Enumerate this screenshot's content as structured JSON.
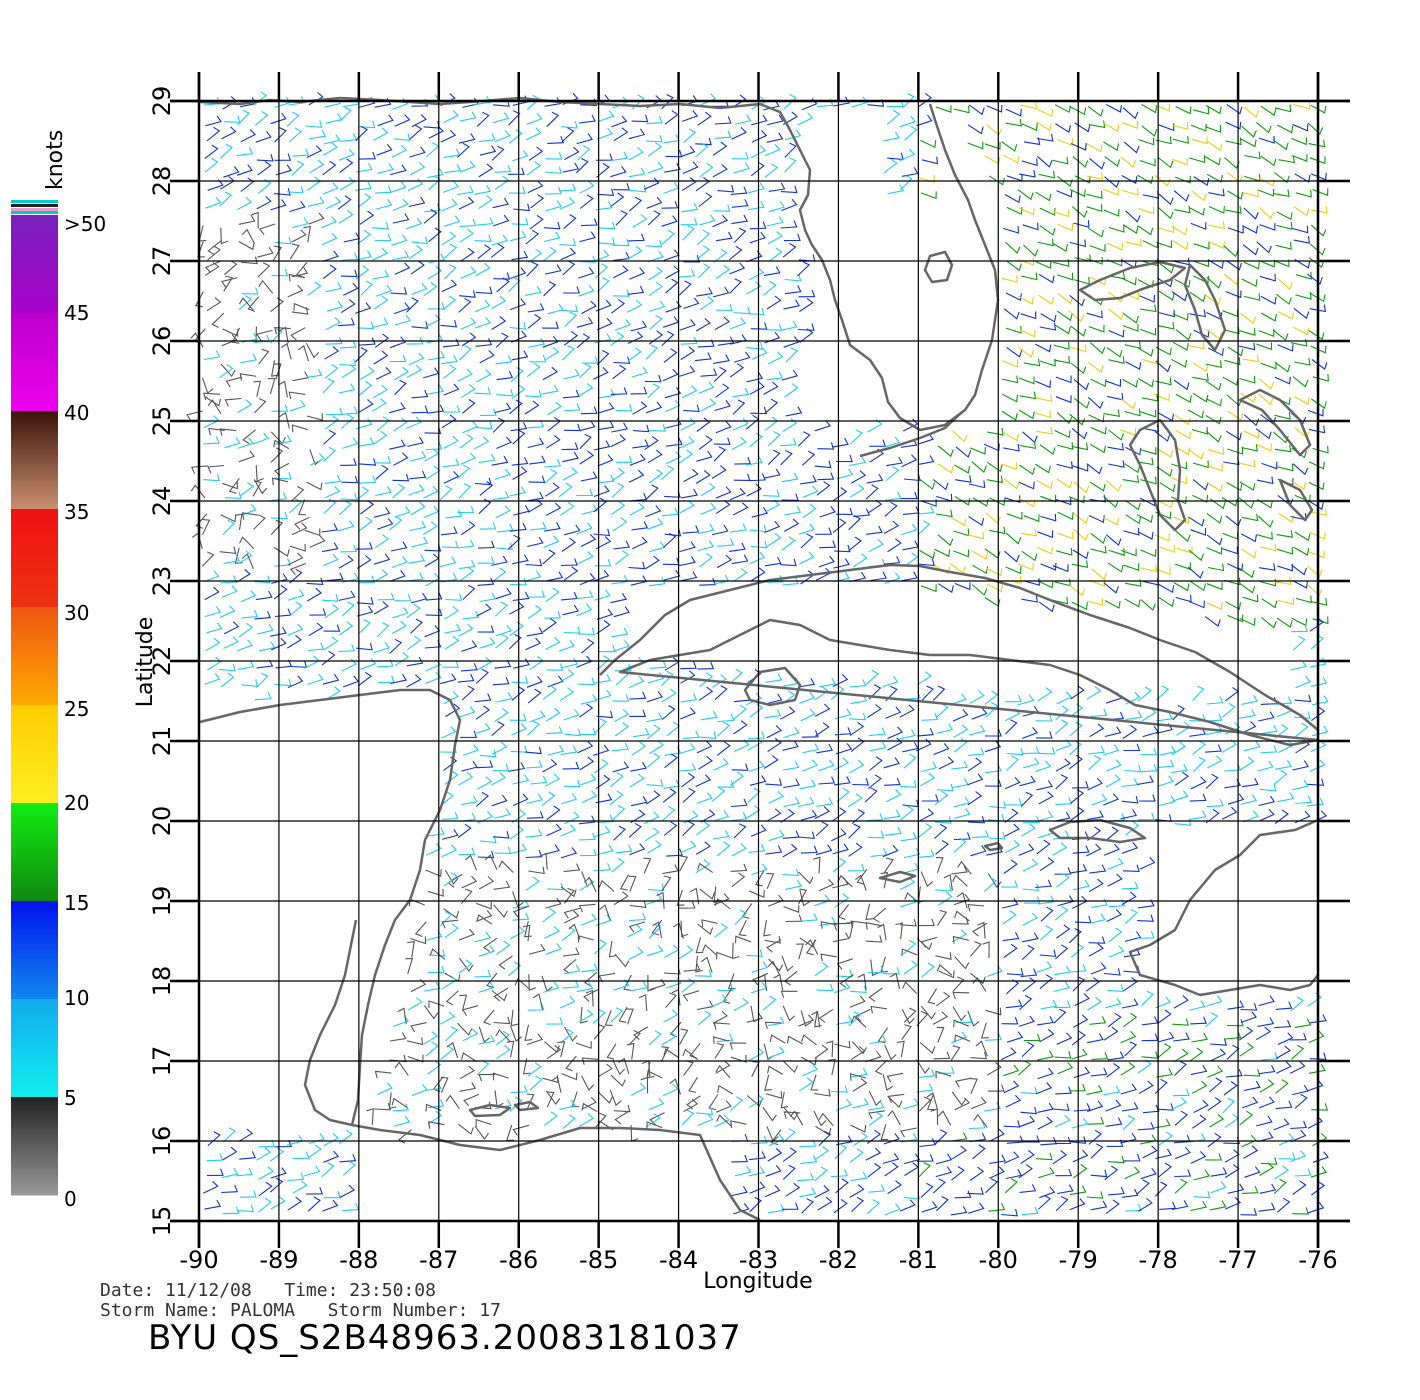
{
  "colorbar": {
    "title": "knots",
    "labels": [
      ">50",
      "45",
      "40",
      "35",
      "30",
      "25",
      "20",
      "15",
      "10",
      "5",
      "0"
    ]
  },
  "map": {
    "xlabel": "Longitude",
    "ylabel": "Latitude",
    "x_ticks": [
      "-90",
      "-89",
      "-88",
      "-87",
      "-86",
      "-85",
      "-84",
      "-83",
      "-82",
      "-81",
      "-80",
      "-79",
      "-78",
      "-77",
      "-76"
    ],
    "y_ticks": [
      "29",
      "28",
      "27",
      "26",
      "25",
      "24",
      "23",
      "22",
      "21",
      "20",
      "19",
      "18",
      "17",
      "16",
      "15"
    ],
    "lon_range": [
      -90,
      -76
    ],
    "lat_range": [
      15,
      29
    ],
    "coastline_color": "#666666"
  },
  "footer": {
    "line1": "Date: 11/12/08   Time: 23:50:08",
    "line2": "Storm Name: PALOMA   Storm Number: 17",
    "title": "BYU QS_S2B48963.20083181037"
  },
  "chart_data": {
    "type": "wind-barb map",
    "xlabel": "Longitude",
    "ylabel": "Latitude",
    "xlim": [
      -90,
      -76
    ],
    "ylim": [
      15,
      29
    ],
    "grid": true,
    "legend": "colorbar left",
    "colorbar_units": "knots",
    "speed_bins": [
      {
        "range": [
          0,
          5
        ],
        "color": "#555555"
      },
      {
        "range": [
          5,
          10
        ],
        "color": "#22ccee"
      },
      {
        "range": [
          10,
          15
        ],
        "color": "#1133cc"
      },
      {
        "range": [
          15,
          20
        ],
        "color": "#119911"
      },
      {
        "range": [
          20,
          25
        ],
        "color": "#e8d010"
      },
      {
        "range": [
          25,
          30
        ],
        "color": "#ee7711"
      },
      {
        "range": [
          30,
          35
        ],
        "color": "#ee2211"
      }
    ]
  }
}
